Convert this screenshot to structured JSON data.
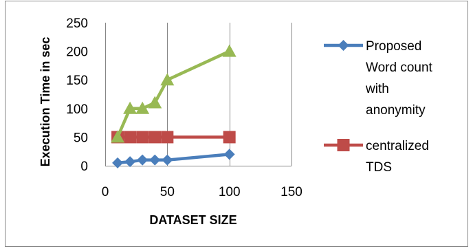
{
  "chart_data": {
    "type": "line",
    "xlabel": "DATASET SIZE",
    "ylabel": "Execution Time in sec",
    "xlim": [
      0,
      150
    ],
    "ylim": [
      0,
      250
    ],
    "x_ticks": [
      "0",
      "50",
      "100",
      "150"
    ],
    "y_ticks": [
      "0",
      "50",
      "100",
      "150",
      "200",
      "250"
    ],
    "grid": "vertical lines only",
    "legend_position": "right",
    "legend": [
      {
        "lines": [
          "Proposed",
          "Word count",
          "with",
          "anonymity"
        ]
      },
      {
        "lines": [
          "centralized",
          "TDS"
        ]
      }
    ],
    "series": [
      {
        "name": "Proposed Word count with anonymity",
        "color": "#4a7ebb",
        "marker": "diamond",
        "x": [
          10,
          20,
          30,
          40,
          50,
          100
        ],
        "y": [
          5,
          7,
          10,
          10,
          10,
          20
        ]
      },
      {
        "name": "centralized TDS",
        "color": "#be4b48",
        "marker": "square",
        "x": [
          10,
          20,
          30,
          40,
          50,
          100
        ],
        "y": [
          50,
          50,
          50,
          50,
          50,
          50
        ]
      },
      {
        "color": "#98b954",
        "marker": "triangle",
        "x": [
          10,
          20,
          30,
          40,
          50,
          100
        ],
        "y": [
          50,
          100,
          100,
          110,
          150,
          200
        ]
      }
    ]
  }
}
